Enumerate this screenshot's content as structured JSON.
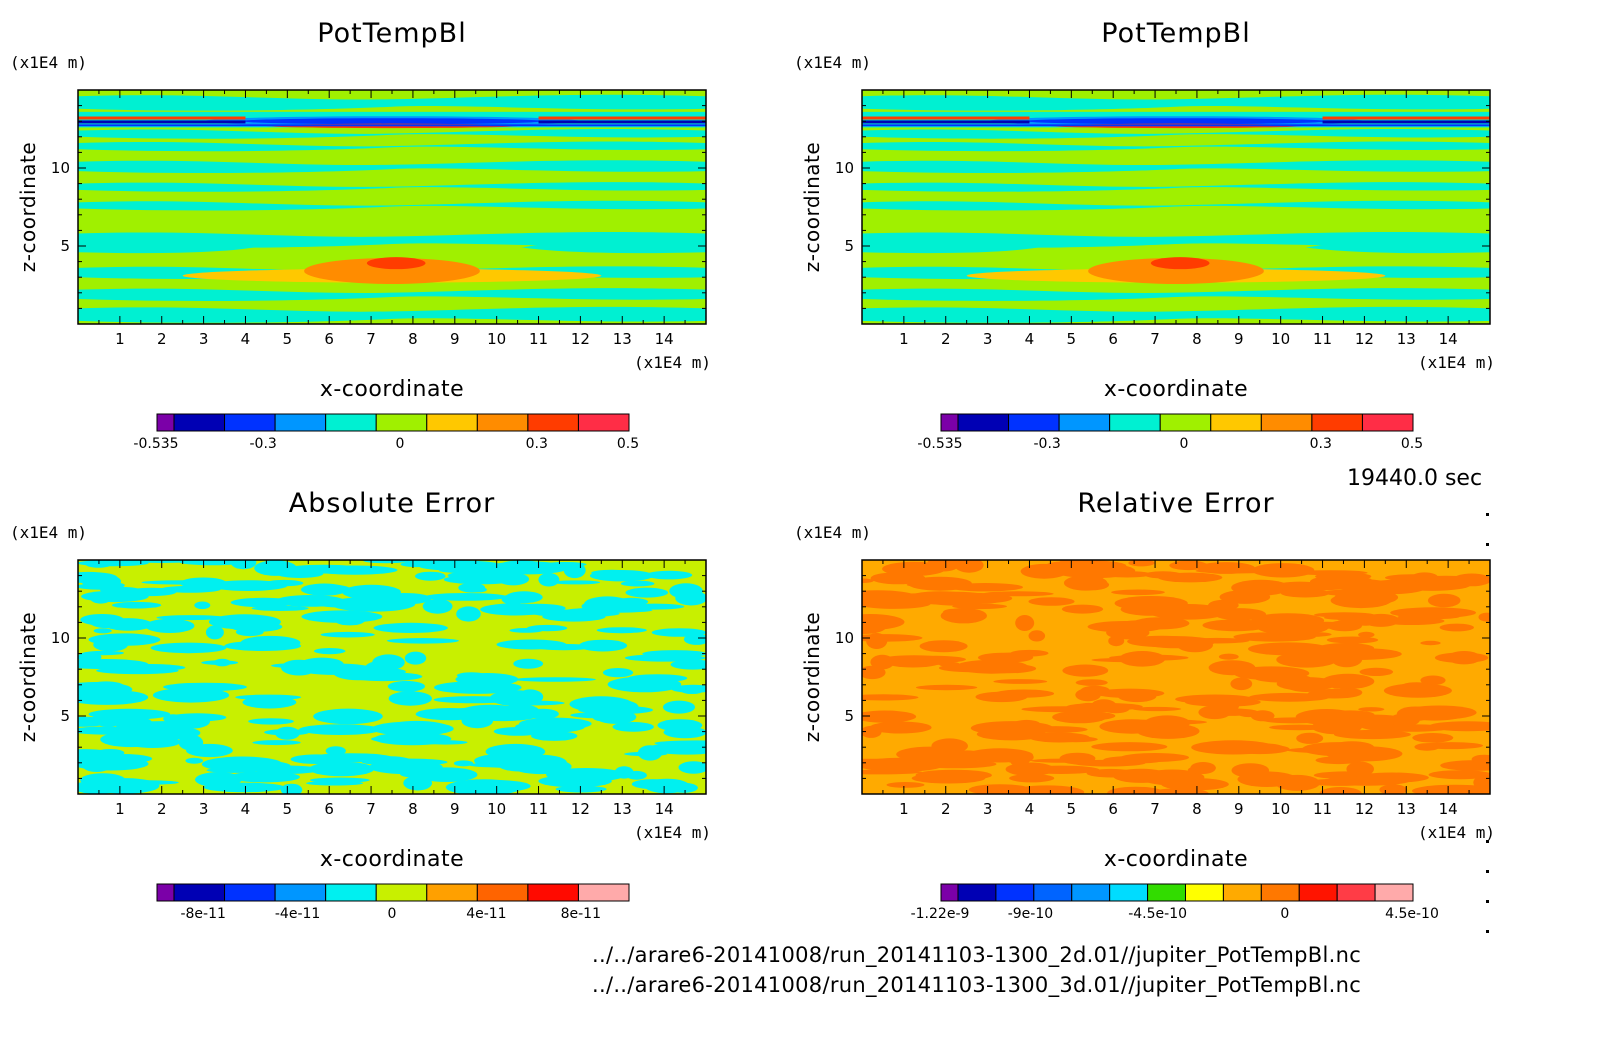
{
  "time_label": "19440.0 sec",
  "files": [
    "../../arare6-20141008/run_20141103-1300_2d.01//jupiter_PotTempBl.nc",
    "../../arare6-20141008/run_20141103-1300_3d.01//jupiter_PotTempBl.nc"
  ],
  "chart_data": [
    {
      "type": "heatmap",
      "title": "PotTempBl",
      "xlabel": "x-coordinate",
      "ylabel": "z-coordinate",
      "x_unit": "(x1E4 m)",
      "y_unit": "(x1E4 m)",
      "xlim": [
        0,
        15
      ],
      "ylim": [
        0,
        15
      ],
      "x_ticks": [
        "1",
        "2",
        "3",
        "4",
        "5",
        "6",
        "7",
        "8",
        "9",
        "10",
        "11",
        "12",
        "13",
        "14"
      ],
      "y_ticks": [
        "5",
        "10"
      ],
      "colorbar": {
        "colors": [
          "#7b00a8",
          "#0000b4",
          "#0032ff",
          "#0096ff",
          "#00f0d2",
          "#a0f000",
          "#ffc800",
          "#ff8c00",
          "#ff3c00",
          "#ff2d46"
        ],
        "tick_labels": [
          "-0.535",
          "-0.3",
          "0",
          "0.3",
          "0.5"
        ]
      }
    },
    {
      "type": "heatmap",
      "title": "PotTempBl",
      "xlabel": "x-coordinate",
      "ylabel": "z-coordinate",
      "x_unit": "(x1E4 m)",
      "y_unit": "(x1E4 m)",
      "xlim": [
        0,
        15
      ],
      "ylim": [
        0,
        15
      ],
      "x_ticks": [
        "1",
        "2",
        "3",
        "4",
        "5",
        "6",
        "7",
        "8",
        "9",
        "10",
        "11",
        "12",
        "13",
        "14"
      ],
      "y_ticks": [
        "5",
        "10"
      ],
      "colorbar": {
        "colors": [
          "#7b00a8",
          "#0000b4",
          "#0032ff",
          "#0096ff",
          "#00f0d2",
          "#a0f000",
          "#ffc800",
          "#ff8c00",
          "#ff3c00",
          "#ff2d46"
        ],
        "tick_labels": [
          "-0.535",
          "-0.3",
          "0",
          "0.3",
          "0.5"
        ]
      }
    },
    {
      "type": "heatmap",
      "title": "Absolute Error",
      "xlabel": "x-coordinate",
      "ylabel": "z-coordinate",
      "x_unit": "(x1E4 m)",
      "y_unit": "(x1E4 m)",
      "xlim": [
        0,
        15
      ],
      "ylim": [
        0,
        15
      ],
      "x_ticks": [
        "1",
        "2",
        "3",
        "4",
        "5",
        "6",
        "7",
        "8",
        "9",
        "10",
        "11",
        "12",
        "13",
        "14"
      ],
      "y_ticks": [
        "5",
        "10"
      ],
      "colorbar": {
        "colors": [
          "#7b00a8",
          "#0000b4",
          "#0032ff",
          "#0096ff",
          "#00f0f0",
          "#c8f000",
          "#ffa000",
          "#ff6400",
          "#ff0a00",
          "#ffaaaa"
        ],
        "tick_labels": [
          "-8e-11",
          "-4e-11",
          "0",
          "4e-11",
          "8e-11"
        ]
      }
    },
    {
      "type": "heatmap",
      "title": "Relative Error",
      "xlabel": "x-coordinate",
      "ylabel": "z-coordinate",
      "x_unit": "(x1E4 m)",
      "y_unit": "(x1E4 m)",
      "xlim": [
        0,
        15
      ],
      "ylim": [
        0,
        15
      ],
      "x_ticks": [
        "1",
        "2",
        "3",
        "4",
        "5",
        "6",
        "7",
        "8",
        "9",
        "10",
        "11",
        "12",
        "13",
        "14"
      ],
      "y_ticks": [
        "5",
        "10"
      ],
      "colorbar": {
        "colors": [
          "#7b00a8",
          "#0000b4",
          "#0032ff",
          "#0064ff",
          "#0096ff",
          "#00dcff",
          "#32dc00",
          "#ffff00",
          "#ffaa00",
          "#ff7800",
          "#ff1400",
          "#ff3c46",
          "#ffaaaa"
        ],
        "tick_labels": [
          "-1.22e-9",
          "-9e-10",
          "-4.5e-10",
          "0",
          "4.5e-10"
        ]
      }
    }
  ]
}
